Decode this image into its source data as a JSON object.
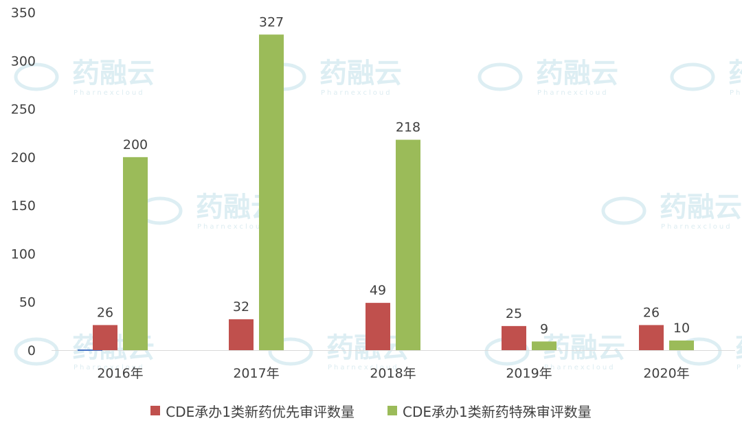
{
  "chart_data": {
    "type": "bar",
    "categories": [
      "2016年",
      "2017年",
      "2018年",
      "2019年",
      "2020年"
    ],
    "series": [
      {
        "name": "CDE承办1类新药优先审评数量",
        "values": [
          26,
          32,
          49,
          25,
          26
        ],
        "color": "#c0504d"
      },
      {
        "name": "CDE承办1类新药特殊审评数量",
        "values": [
          200,
          327,
          218,
          9,
          10
        ],
        "color": "#9bbb59"
      }
    ],
    "ylim": [
      0,
      350
    ],
    "yticks": [
      0,
      50,
      100,
      150,
      200,
      250,
      300,
      350
    ],
    "grid": false,
    "legend_position": "bottom"
  },
  "watermark": {
    "text": "药融云",
    "subtext": "Pharnexcloud"
  }
}
